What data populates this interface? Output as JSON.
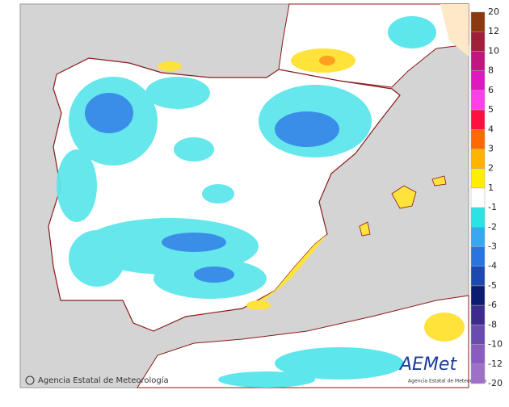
{
  "legend": {
    "values": [
      20,
      12,
      10,
      8,
      6,
      5,
      4,
      3,
      2,
      1,
      -1,
      -2,
      -3,
      -4,
      -5,
      -6,
      -8,
      -10,
      -12,
      -20
    ],
    "colors": [
      "#8b3a10",
      "#a0203a",
      "#c21580",
      "#e018c0",
      "#ff40e8",
      "#ff1040",
      "#ff6a00",
      "#ffb400",
      "#ffee00",
      "#ffffff",
      "#28e4e4",
      "#3aa8f0",
      "#2a74e0",
      "#1c48b0",
      "#0c1c6e",
      "#3c2c8c",
      "#6a4cb0",
      "#8a5cc0",
      "#a070c8"
    ]
  },
  "credit": "Agencia Estatal de Meteorología",
  "logo": {
    "name": "AEMet",
    "caption": "Agencia Estatal de Meteorología"
  }
}
